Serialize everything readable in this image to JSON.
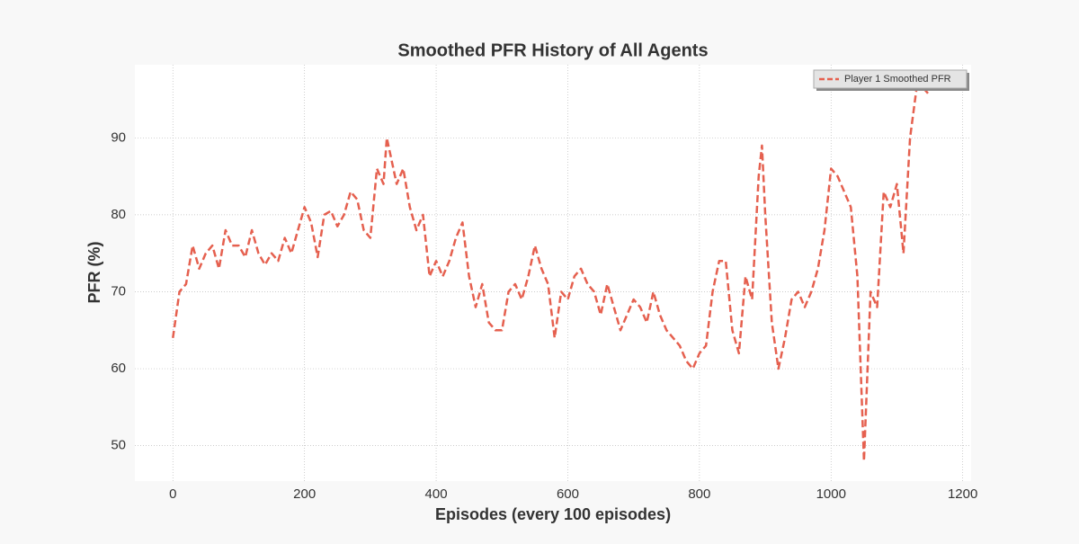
{
  "chart_data": {
    "type": "line",
    "title": "Smoothed PFR History of All Agents",
    "x_label": "Episodes (every 100 episodes)",
    "y_label": "PFR (%)",
    "x": [
      0,
      10,
      20,
      30,
      40,
      50,
      60,
      70,
      80,
      90,
      100,
      110,
      120,
      130,
      140,
      150,
      160,
      170,
      180,
      190,
      200,
      210,
      220,
      230,
      240,
      250,
      260,
      270,
      280,
      290,
      300,
      310,
      320,
      325,
      330,
      340,
      350,
      360,
      370,
      380,
      390,
      400,
      410,
      420,
      430,
      440,
      450,
      460,
      470,
      480,
      490,
      500,
      510,
      520,
      530,
      540,
      550,
      560,
      570,
      580,
      590,
      600,
      610,
      620,
      630,
      640,
      650,
      660,
      670,
      680,
      690,
      700,
      710,
      720,
      730,
      740,
      750,
      760,
      770,
      780,
      790,
      800,
      810,
      820,
      830,
      840,
      850,
      860,
      870,
      880,
      890,
      895,
      900,
      910,
      920,
      930,
      940,
      950,
      960,
      970,
      980,
      990,
      1000,
      1010,
      1020,
      1030,
      1040,
      1050,
      1060,
      1070,
      1080,
      1090,
      1100,
      1110,
      1120,
      1130,
      1140,
      1150
    ],
    "series": [
      {
        "name": "Player 1 Smoothed PFR",
        "color": "#e5604f",
        "values": [
          64,
          70,
          71,
          76,
          73,
          75,
          76,
          73,
          78,
          76,
          76,
          74.5,
          78,
          75,
          73.5,
          75,
          74,
          77,
          75,
          78,
          81,
          79,
          74.5,
          80,
          80.5,
          78.5,
          80,
          83,
          82,
          78,
          77,
          86,
          84,
          90,
          88,
          84,
          86,
          81,
          78,
          80,
          72,
          74,
          72,
          74,
          77,
          79,
          72,
          68,
          71,
          66,
          65,
          65,
          70,
          71,
          69,
          72,
          76,
          73,
          71,
          64,
          70,
          69,
          72,
          73,
          71,
          70,
          67,
          71,
          68,
          65,
          67,
          69,
          68,
          66,
          70,
          67,
          65,
          64,
          63,
          61,
          60,
          62,
          63,
          70,
          74,
          74,
          65,
          62,
          72,
          69,
          85,
          89,
          80,
          66,
          60,
          64,
          69,
          70,
          68,
          70,
          73,
          78,
          86,
          85,
          83,
          81,
          72,
          48,
          70,
          68,
          83,
          81,
          84,
          75,
          90,
          96.5,
          96.5,
          95.5
        ]
      }
    ],
    "xlim": [
      -57.75,
      1212.75
    ],
    "ylim": [
      45.4,
      99.5
    ],
    "xticks": [
      0,
      200,
      400,
      600,
      800,
      1000,
      1200
    ],
    "yticks": [
      50,
      60,
      70,
      80,
      90
    ],
    "grid": true,
    "legend": "upper right"
  }
}
